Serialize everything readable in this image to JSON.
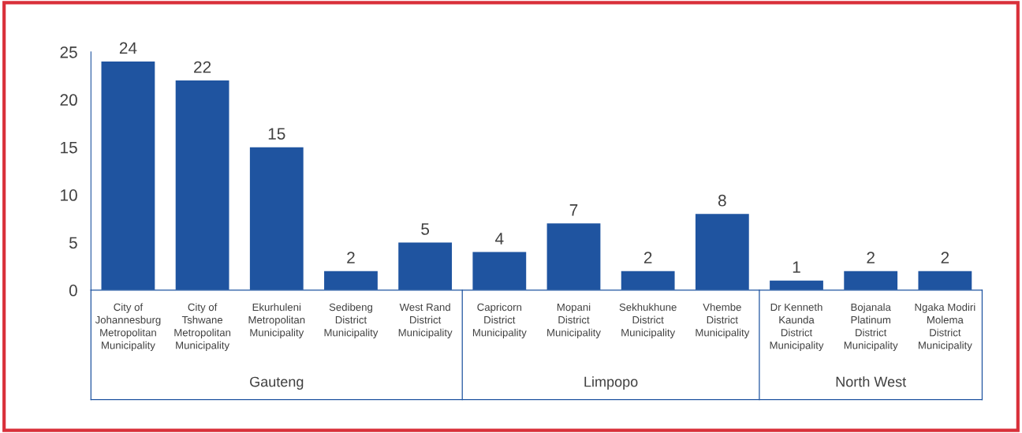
{
  "chart_data": {
    "type": "bar",
    "categories": [
      "City of\nJohannesburg\nMetropolitan\nMunicipality",
      "City of\nTshwane\nMetropolitan\nMunicipality",
      "Ekurhuleni\nMetropolitan\nMunicipality",
      "Sedibeng\nDistrict\nMunicipality",
      "West Rand\nDistrict\nMunicipality",
      "Capricorn\nDistrict\nMunicipality",
      "Mopani\nDistrict\nMunicipality",
      "Sekhukhune\nDistrict\nMunicipality",
      "Vhembe\nDistrict\nMunicipality",
      "Dr Kenneth\nKaunda\nDistrict\nMunicipality",
      "Bojanala\nPlatinum\nDistrict\nMunicipality",
      "Ngaka Modiri\nMolema\nDistrict\nMunicipality"
    ],
    "values": [
      24,
      22,
      15,
      2,
      5,
      4,
      7,
      2,
      8,
      1,
      2,
      2
    ],
    "color": "#1f54a0",
    "ylim": [
      0,
      25
    ],
    "yticks": [
      0,
      5,
      10,
      15,
      20,
      25
    ],
    "data_labels": true,
    "grid": false,
    "legend": false,
    "annotations": [
      "Gauteng",
      "Limpopo",
      "North West"
    ]
  }
}
